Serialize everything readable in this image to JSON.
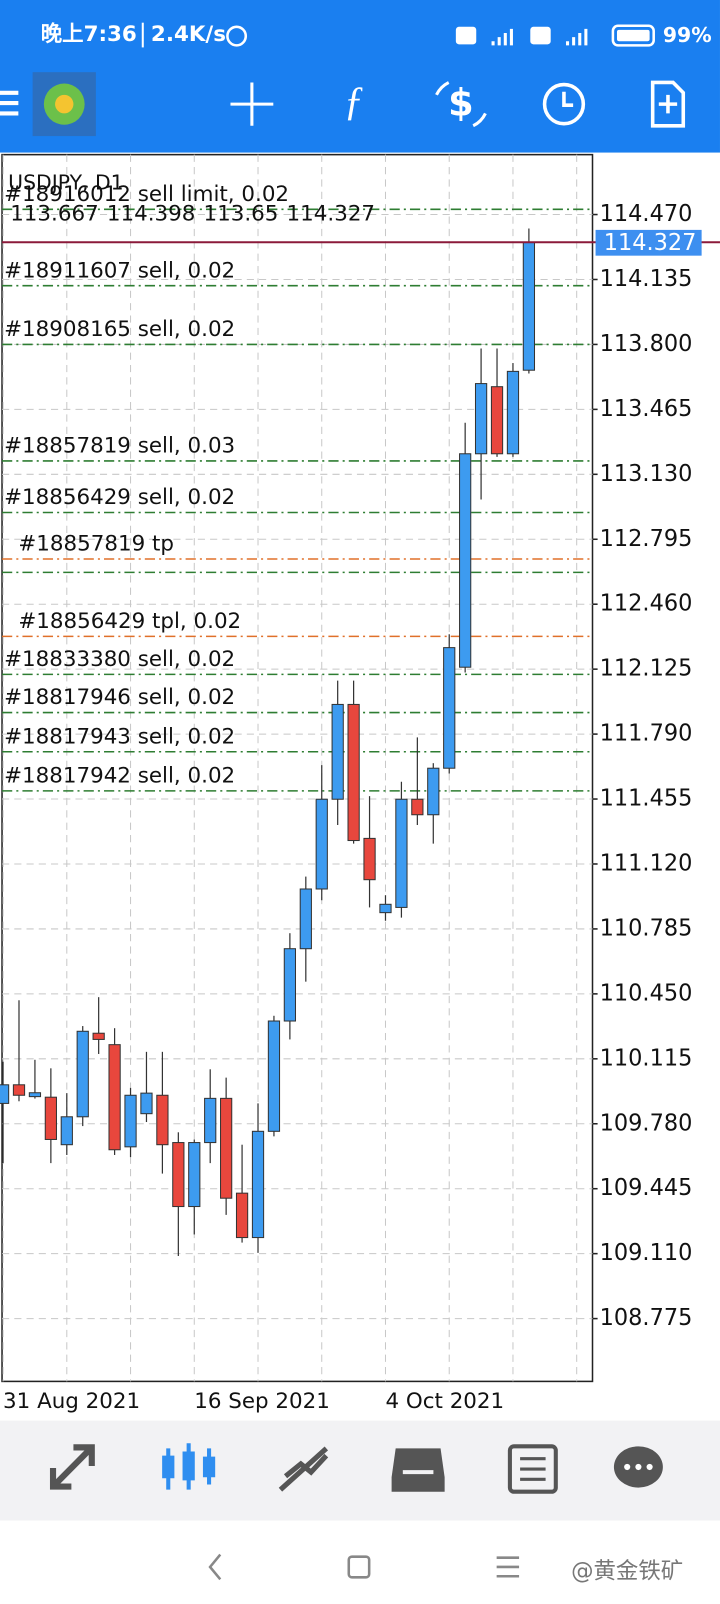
{
  "status_bar": {
    "time": "晚上7:36",
    "speed": "2.4K/s",
    "battery": "99%"
  },
  "watermark": "@黄金铁矿",
  "chart_data": {
    "type": "candlestick",
    "title": "USDJPY, D1",
    "categories": [
      "31 Aug 2021",
      null,
      null,
      null,
      null,
      null,
      null,
      null,
      null,
      null,
      null,
      null,
      "16 Sep 2021",
      null,
      null,
      null,
      null,
      null,
      null,
      null,
      null,
      null,
      null,
      null,
      "4 Oct 2021",
      null,
      null,
      null,
      null,
      null,
      null,
      null,
      null,
      null
    ],
    "open": [
      109.885,
      109.981,
      109.92,
      109.917,
      109.672,
      109.816,
      110.247,
      110.188,
      109.661,
      109.832,
      109.927,
      109.683,
      109.353,
      109.683,
      109.911,
      109.422,
      109.193,
      109.741,
      110.31,
      110.683,
      110.991,
      111.454,
      111.943,
      111.252,
      110.869,
      110.896,
      111.454,
      111.374,
      111.614,
      112.135,
      113.236,
      113.582,
      113.236,
      113.667
    ],
    "high": [
      110.1,
      110.417,
      110.11,
      110.066,
      109.938,
      110.284,
      110.433,
      110.273,
      109.965,
      110.151,
      110.151,
      109.736,
      109.699,
      110.061,
      110.018,
      109.672,
      109.885,
      110.337,
      110.763,
      111.055,
      111.63,
      112.066,
      112.066,
      111.47,
      110.959,
      111.544,
      111.773,
      111.64,
      112.305,
      113.396,
      113.779,
      113.779,
      113.704,
      114.398
    ],
    "low": [
      109.577,
      109.896,
      109.91,
      109.577,
      109.619,
      109.768,
      110.14,
      109.619,
      109.608,
      109.789,
      109.523,
      109.098,
      109.209,
      109.577,
      109.31,
      109.167,
      109.114,
      109.715,
      110.215,
      110.513,
      110.933,
      111.321,
      111.225,
      110.896,
      110.827,
      110.843,
      111.321,
      111.225,
      111.587,
      112.108,
      113.0,
      113.22,
      113.22,
      113.65
    ],
    "close": [
      109.981,
      109.927,
      109.94,
      109.699,
      109.816,
      110.257,
      110.215,
      109.646,
      109.927,
      109.938,
      109.672,
      109.353,
      109.683,
      109.911,
      109.396,
      109.193,
      109.741,
      110.31,
      110.683,
      110.991,
      111.454,
      111.943,
      111.241,
      111.039,
      110.912,
      111.454,
      111.374,
      111.614,
      112.236,
      113.236,
      113.598,
      113.236,
      113.661,
      114.327
    ],
    "up_color": "#3d9bf0",
    "down_color": "#e8473d",
    "last_price_color": "#8b1a3a",
    "ylim": [
      108.451,
      114.779
    ],
    "yticks": [
      {
        "value": 114.47,
        "label": "114.470"
      },
      114.135,
      {
        "value": 113.8,
        "label": "113.800"
      },
      113.465,
      {
        "value": 113.13,
        "label": "113.130"
      },
      112.795,
      {
        "value": 112.46,
        "label": "112.460"
      },
      112.125,
      {
        "value": 111.79,
        "label": "111.790"
      },
      111.455,
      {
        "value": 111.12,
        "label": "111.120"
      },
      110.785,
      {
        "value": 110.45,
        "label": "110.450"
      },
      110.115,
      {
        "value": 109.78,
        "label": "109.780"
      },
      109.445,
      {
        "value": 109.11,
        "label": "109.110"
      },
      108.775
    ],
    "grid": true,
    "orders": [
      {
        "label": "#18916012 sell limit, 0.02",
        "price": 114.497,
        "color": "#2e7d32"
      },
      {
        "label": "#18911607 sell, 0.02",
        "price": 114.103,
        "color": "#2e7d32"
      },
      {
        "label": "#18908165 sell, 0.02",
        "price": 113.8,
        "color": "#2e7d32"
      },
      {
        "label": "#18857819 sell, 0.03",
        "price": 113.199,
        "color": "#2e7d32"
      },
      {
        "label": "#18856429 sell, 0.02",
        "price": 112.933,
        "color": "#2e7d32"
      },
      {
        "label": "#18857819 tp",
        "price": 112.693,
        "color": "#e0702a"
      },
      {
        "price": 112.624,
        "color": "#2e7d32"
      },
      {
        "label": "#18856429 tpl, 0.02",
        "price": 112.294,
        "color": "#e0702a"
      },
      {
        "label": "#18833380 sell, 0.02",
        "price": 112.098,
        "color": "#2e7d32"
      },
      {
        "label": "#18817946 sell, 0.02",
        "price": 111.901,
        "color": "#2e7d32"
      },
      {
        "label": "#18817943 sell, 0.02",
        "price": 111.699,
        "color": "#2e7d32"
      },
      {
        "label": "#18817942 sell, 0.02",
        "price": 111.497,
        "color": "#2e7d32"
      }
    ]
  }
}
